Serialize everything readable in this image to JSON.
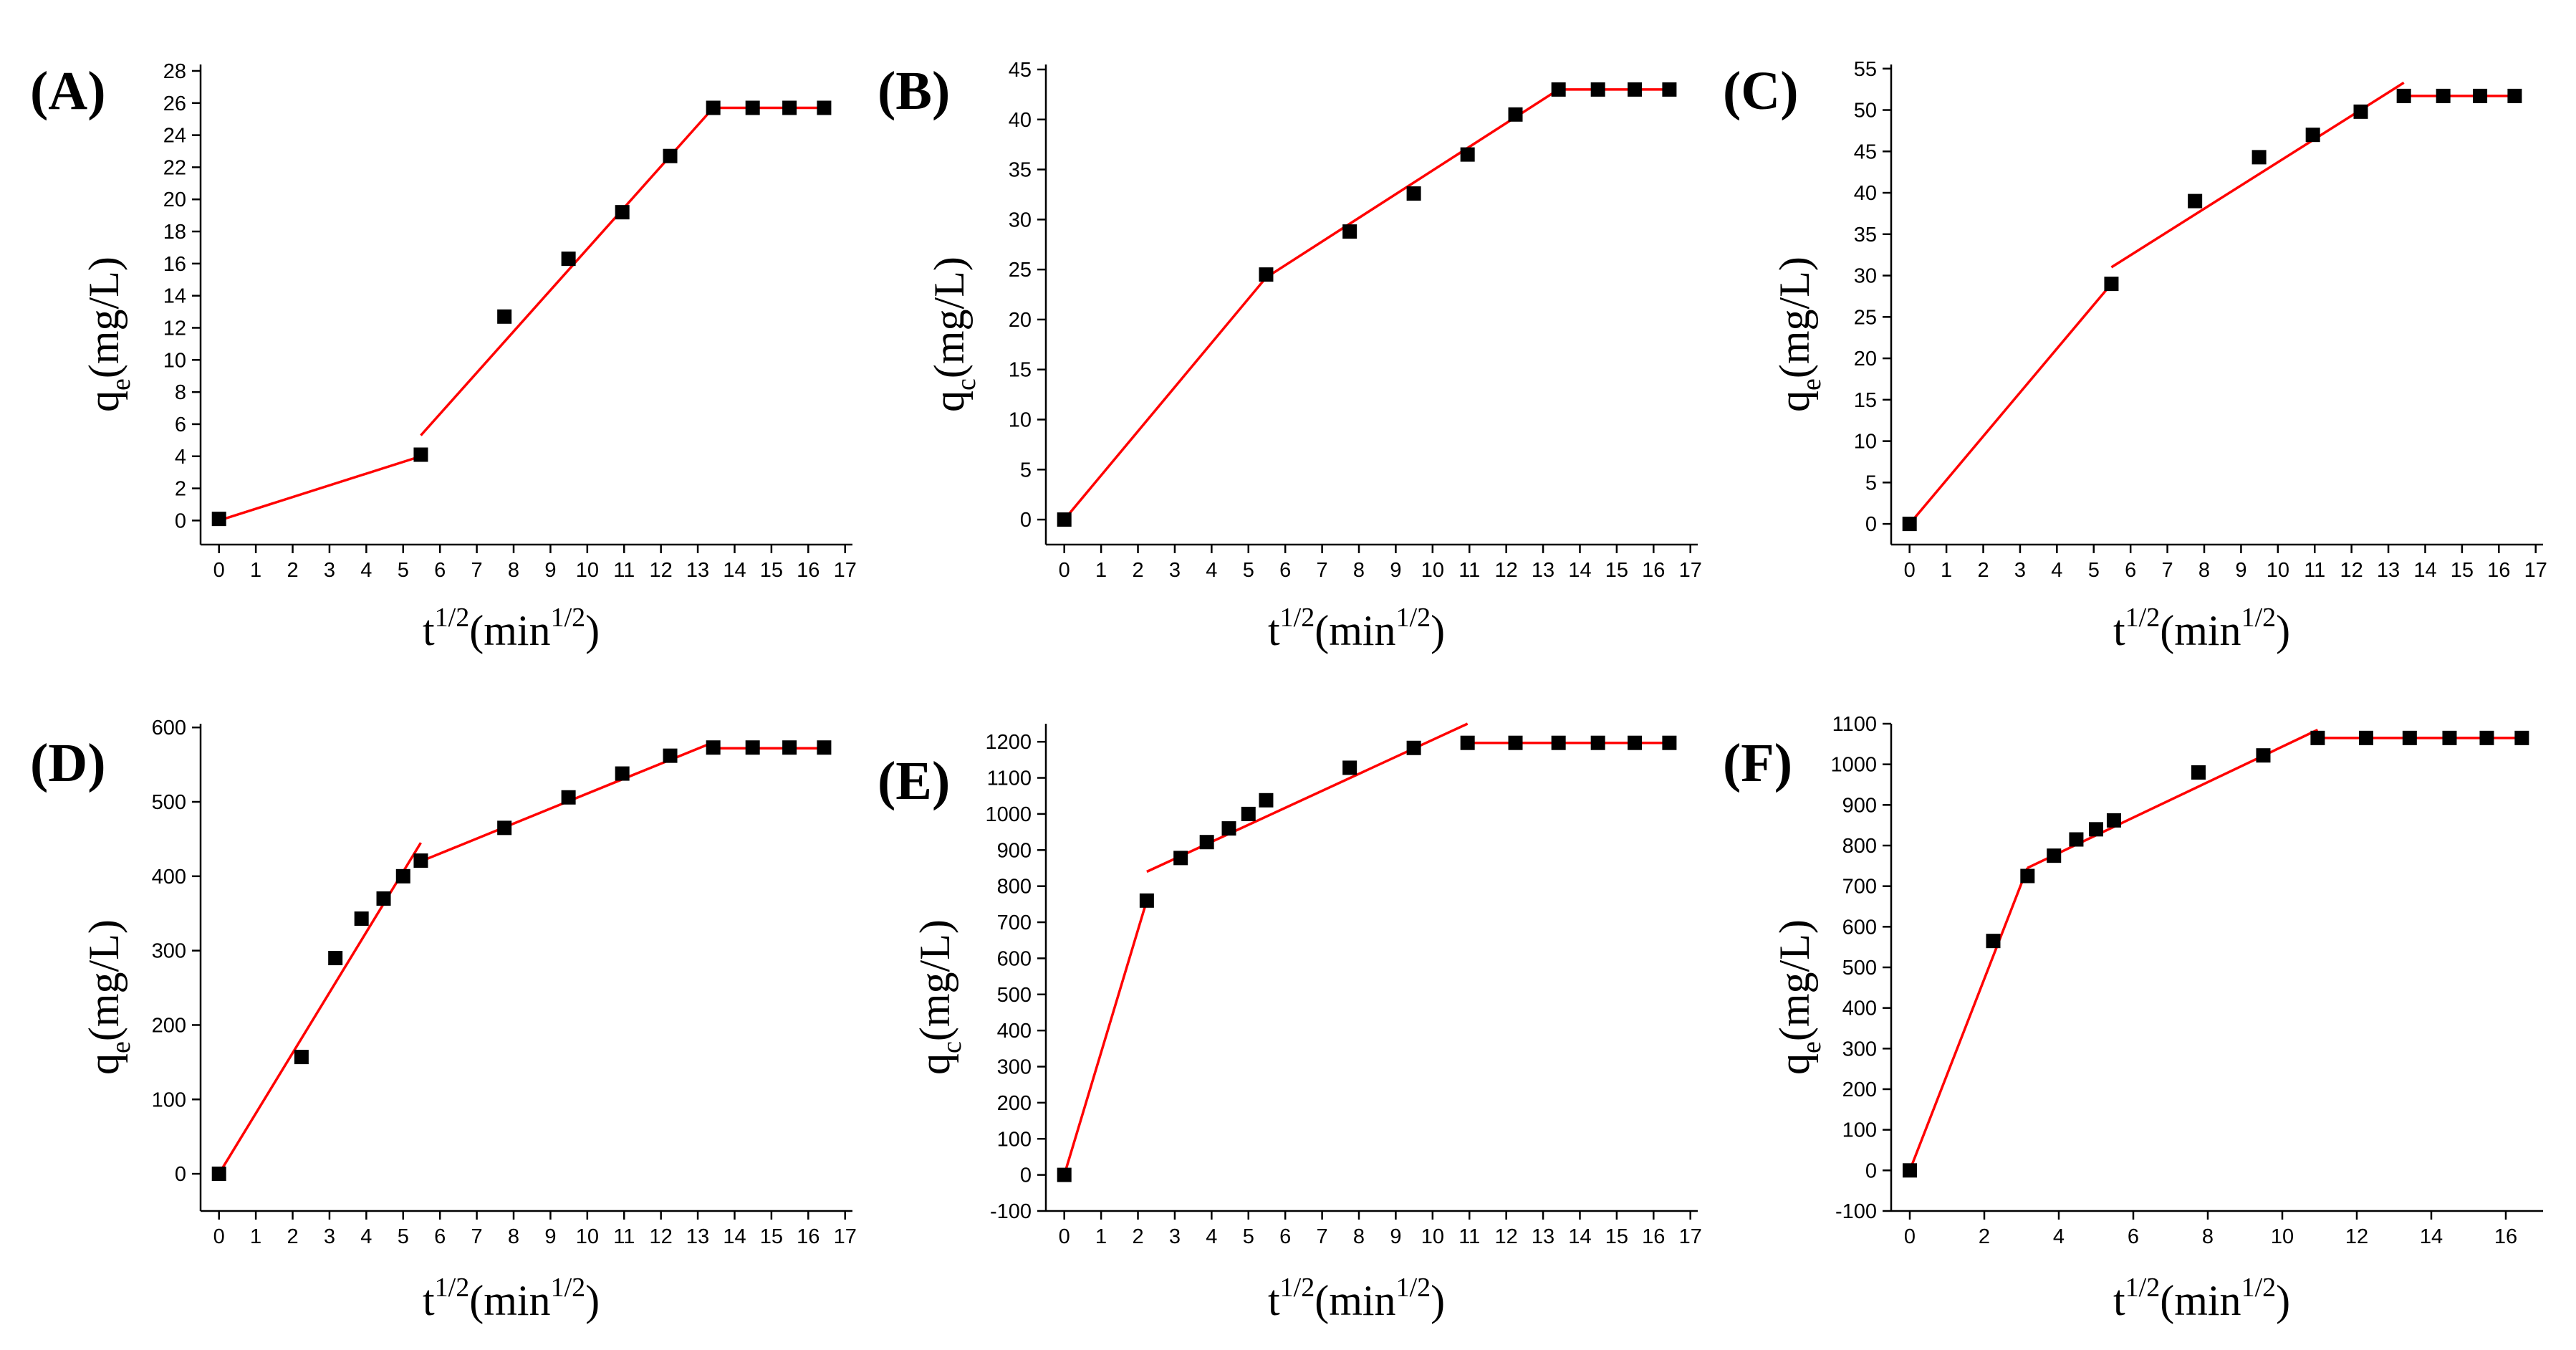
{
  "figure": {
    "x_title": {
      "base": "t",
      "sup1": "1/2",
      "mid": "(min",
      "sup2": "1/2",
      "end": ")"
    },
    "y_title": {
      "base": "q",
      "sub_e": "e",
      "sub_c": "c",
      "rest": "(mg/L)"
    }
  },
  "chart_data": [
    {
      "label": "(A)",
      "type": "scatter",
      "xlabel": "t1/2(min1/2)",
      "ylabel": "qe(mg/L)",
      "y_subscript": "e",
      "xlim": [
        -0.5,
        17.2
      ],
      "ylim": [
        -1.5,
        28.4
      ],
      "xticks": [
        0,
        1,
        2,
        3,
        4,
        5,
        6,
        7,
        8,
        9,
        10,
        11,
        12,
        13,
        14,
        15,
        16,
        17
      ],
      "yticks": [
        0,
        2,
        4,
        6,
        8,
        10,
        12,
        14,
        16,
        18,
        20,
        22,
        24,
        26,
        28
      ],
      "points": [
        [
          0,
          0.1
        ],
        [
          5.48,
          4.1
        ],
        [
          7.75,
          12.7
        ],
        [
          9.49,
          16.3
        ],
        [
          10.95,
          19.2
        ],
        [
          12.25,
          22.7
        ],
        [
          13.42,
          25.7
        ],
        [
          14.49,
          25.7
        ],
        [
          15.49,
          25.7
        ],
        [
          16.43,
          25.7
        ]
      ],
      "fit_lines": [
        [
          [
            0,
            0
          ],
          [
            5.48,
            4.0
          ]
        ],
        [
          [
            5.48,
            5.3
          ],
          [
            13.42,
            25.7
          ]
        ],
        [
          [
            13.42,
            25.7
          ],
          [
            16.43,
            25.7
          ]
        ]
      ]
    },
    {
      "label": "(B)",
      "type": "scatter",
      "xlabel": "t1/2(min1/2)",
      "ylabel": "qc(mg/L)",
      "y_subscript": "c",
      "xlim": [
        -0.5,
        17.2
      ],
      "ylim": [
        -2.5,
        45.5
      ],
      "xticks": [
        0,
        1,
        2,
        3,
        4,
        5,
        6,
        7,
        8,
        9,
        10,
        11,
        12,
        13,
        14,
        15,
        16,
        17
      ],
      "yticks": [
        0,
        5,
        10,
        15,
        20,
        25,
        30,
        35,
        40,
        45
      ],
      "points": [
        [
          0,
          0
        ],
        [
          5.48,
          24.5
        ],
        [
          7.75,
          28.8
        ],
        [
          9.49,
          32.6
        ],
        [
          10.95,
          36.5
        ],
        [
          12.25,
          40.5
        ],
        [
          13.42,
          43.0
        ],
        [
          14.49,
          43.0
        ],
        [
          15.49,
          43.0
        ],
        [
          16.43,
          43.0
        ]
      ],
      "fit_lines": [
        [
          [
            0,
            0
          ],
          [
            5.48,
            24.2
          ]
        ],
        [
          [
            5.48,
            24.2
          ],
          [
            13.42,
            43.0
          ]
        ],
        [
          [
            13.42,
            43.0
          ],
          [
            16.43,
            43.0
          ]
        ]
      ]
    },
    {
      "label": "(C)",
      "type": "scatter",
      "xlabel": "t1/2(min1/2)",
      "ylabel": "qe(mg/L)",
      "y_subscript": "e",
      "xlim": [
        -0.5,
        17.2
      ],
      "ylim": [
        -2.5,
        55.5
      ],
      "xticks": [
        0,
        1,
        2,
        3,
        4,
        5,
        6,
        7,
        8,
        9,
        10,
        11,
        12,
        13,
        14,
        15,
        16,
        17
      ],
      "yticks": [
        0,
        5,
        10,
        15,
        20,
        25,
        30,
        35,
        40,
        45,
        50,
        55
      ],
      "points": [
        [
          0,
          0
        ],
        [
          5.48,
          29.0
        ],
        [
          7.75,
          39.0
        ],
        [
          9.49,
          44.3
        ],
        [
          10.95,
          47.0
        ],
        [
          12.25,
          49.8
        ],
        [
          13.42,
          51.7
        ],
        [
          14.49,
          51.7
        ],
        [
          15.49,
          51.7
        ],
        [
          16.43,
          51.7
        ]
      ],
      "fit_lines": [
        [
          [
            0,
            0
          ],
          [
            5.48,
            29.0
          ]
        ],
        [
          [
            5.48,
            31.0
          ],
          [
            13.42,
            53.3
          ]
        ],
        [
          [
            13.42,
            51.7
          ],
          [
            16.43,
            51.7
          ]
        ]
      ]
    },
    {
      "label": "(D)",
      "type": "scatter",
      "xlabel": "t1/2(min1/2)",
      "ylabel": "qe(mg/L)",
      "y_subscript": "e",
      "xlim": [
        -0.5,
        17.2
      ],
      "ylim": [
        -50,
        605
      ],
      "xticks": [
        0,
        1,
        2,
        3,
        4,
        5,
        6,
        7,
        8,
        9,
        10,
        11,
        12,
        13,
        14,
        15,
        16,
        17
      ],
      "yticks": [
        0,
        100,
        200,
        300,
        400,
        500,
        600
      ],
      "points": [
        [
          0,
          0
        ],
        [
          2.24,
          157
        ],
        [
          3.16,
          290
        ],
        [
          3.87,
          343
        ],
        [
          4.47,
          370
        ],
        [
          5.0,
          400
        ],
        [
          5.48,
          421
        ],
        [
          7.75,
          465
        ],
        [
          9.49,
          506
        ],
        [
          10.95,
          538
        ],
        [
          12.25,
          562
        ],
        [
          13.42,
          573
        ],
        [
          14.49,
          573
        ],
        [
          15.49,
          573
        ],
        [
          16.43,
          573
        ]
      ],
      "fit_lines": [
        [
          [
            0,
            0
          ],
          [
            5.48,
            445
          ]
        ],
        [
          [
            5.48,
            420
          ],
          [
            13.42,
            580
          ]
        ],
        [
          [
            13.42,
            572
          ],
          [
            16.43,
            572
          ]
        ]
      ]
    },
    {
      "label": "(E)",
      "type": "scatter",
      "xlabel": "t1/2(min1/2)",
      "ylabel": "qc(mg/L)",
      "y_subscript": "c",
      "xlim": [
        -0.5,
        17.2
      ],
      "ylim": [
        -100,
        1250
      ],
      "xticks": [
        0,
        1,
        2,
        3,
        4,
        5,
        6,
        7,
        8,
        9,
        10,
        11,
        12,
        13,
        14,
        15,
        16,
        17
      ],
      "yticks": [
        -100,
        0,
        100,
        200,
        300,
        400,
        500,
        600,
        700,
        800,
        900,
        1000,
        1100,
        1200
      ],
      "points": [
        [
          0,
          0
        ],
        [
          2.24,
          760
        ],
        [
          3.16,
          878
        ],
        [
          3.87,
          922
        ],
        [
          4.47,
          960
        ],
        [
          5.0,
          1000
        ],
        [
          5.48,
          1038
        ],
        [
          7.75,
          1128
        ],
        [
          9.49,
          1183
        ],
        [
          10.95,
          1197
        ],
        [
          12.25,
          1197
        ],
        [
          13.42,
          1197
        ],
        [
          14.49,
          1197
        ],
        [
          15.49,
          1197
        ],
        [
          16.43,
          1197
        ]
      ],
      "fit_lines": [
        [
          [
            0,
            0
          ],
          [
            2.24,
            760
          ]
        ],
        [
          [
            2.24,
            840
          ],
          [
            10.95,
            1250
          ]
        ],
        [
          [
            10.95,
            1197
          ],
          [
            16.43,
            1197
          ]
        ]
      ]
    },
    {
      "label": "(F)",
      "type": "scatter",
      "xlabel": "t1/2(min1/2)",
      "ylabel": "qe(mg/L)",
      "y_subscript": "e",
      "xlim": [
        -0.5,
        17.0
      ],
      "ylim": [
        -100,
        1100
      ],
      "xticks": [
        0,
        2,
        4,
        6,
        8,
        10,
        12,
        14,
        16
      ],
      "yticks": [
        -100,
        0,
        100,
        200,
        300,
        400,
        500,
        600,
        700,
        800,
        900,
        1000,
        1100
      ],
      "points": [
        [
          0,
          0
        ],
        [
          2.24,
          565
        ],
        [
          3.16,
          725
        ],
        [
          3.87,
          775
        ],
        [
          4.47,
          815
        ],
        [
          5.0,
          840
        ],
        [
          5.48,
          862
        ],
        [
          7.75,
          980
        ],
        [
          9.49,
          1022
        ],
        [
          10.95,
          1065
        ],
        [
          12.25,
          1065
        ],
        [
          13.42,
          1065
        ],
        [
          14.49,
          1065
        ],
        [
          15.49,
          1065
        ],
        [
          16.43,
          1065
        ]
      ],
      "fit_lines": [
        [
          [
            0,
            0
          ],
          [
            3.16,
            745
          ]
        ],
        [
          [
            3.16,
            745
          ],
          [
            10.95,
            1085
          ]
        ],
        [
          [
            10.95,
            1065
          ],
          [
            16.43,
            1065
          ]
        ]
      ]
    }
  ]
}
